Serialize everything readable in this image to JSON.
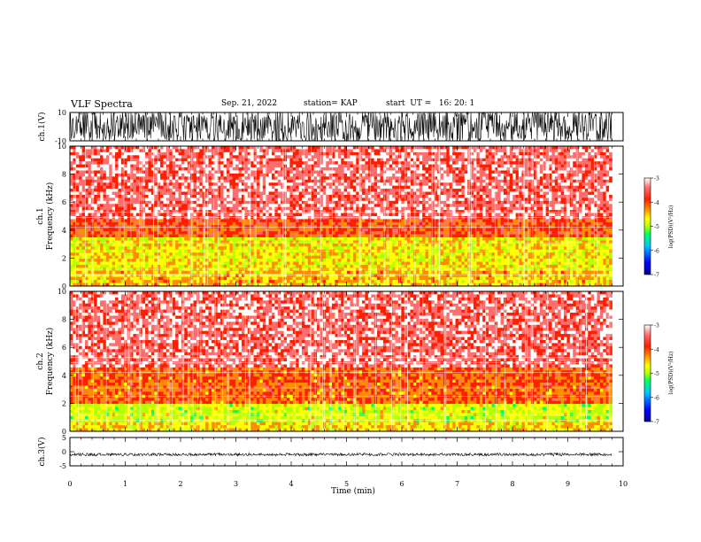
{
  "header": {
    "title": "VLF Spectra",
    "date": "Sep. 21, 2022",
    "station": "station= KAP",
    "start": "start  UT =   16: 20: 1"
  },
  "chart_data": [
    {
      "type": "line",
      "panel": "ch1-waveform",
      "ylabel": "ch.1(V)",
      "ylim": [
        -10,
        10
      ],
      "yticks": [
        "10",
        "-10"
      ],
      "xlim": [
        0,
        10
      ],
      "note_values": "waveform saturates near ±10 V for most of the record"
    },
    {
      "type": "heatmap",
      "panel": "ch1-spectrogram",
      "ylabel": "ch.1\nFrequency (kHz)",
      "ylim": [
        0,
        10
      ],
      "yticks": [
        "0",
        "2",
        "4",
        "6",
        "8",
        "10"
      ],
      "xlim": [
        0,
        9.8
      ],
      "colorbar": {
        "label": "log(PSD)(V²/Hz)",
        "range": [
          -7,
          -3
        ],
        "ticks": [
          "-3",
          "-4",
          "-5",
          "-6",
          "-7"
        ]
      },
      "bands": [
        {
          "freq": [
            0,
            1.0
          ],
          "level": -4.6
        },
        {
          "freq": [
            1.0,
            3.5
          ],
          "level": -4.8
        },
        {
          "freq": [
            3.5,
            4.8
          ],
          "level": -4.1
        },
        {
          "freq": [
            4.8,
            10
          ],
          "level": -3.6
        }
      ]
    },
    {
      "type": "heatmap",
      "panel": "ch2-spectrogram",
      "ylabel": "ch.2\nFrequency (kHz)",
      "ylim": [
        0,
        10
      ],
      "yticks": [
        "0",
        "2",
        "4",
        "6",
        "8",
        "10"
      ],
      "xlim": [
        0,
        9.8
      ],
      "colorbar": {
        "label": "log(PSD)(V²/Hz)",
        "range": [
          -7,
          -3
        ],
        "ticks": [
          "-3",
          "-4",
          "-5",
          "-6",
          "-7"
        ]
      },
      "bands": [
        {
          "freq": [
            0,
            0.6
          ],
          "level": -4.7
        },
        {
          "freq": [
            0.6,
            2.0
          ],
          "level": -5.0
        },
        {
          "freq": [
            2.0,
            4.5
          ],
          "level": -4.2
        },
        {
          "freq": [
            4.5,
            10
          ],
          "level": -3.6
        }
      ]
    },
    {
      "type": "line",
      "panel": "ch3-waveform",
      "ylabel": "ch.3(V)",
      "ylim": [
        -5,
        5
      ],
      "yticks": [
        "5",
        "0",
        "-5"
      ],
      "xlim": [
        0,
        10
      ],
      "note_values": "waveform centred near -1 V with small amplitude"
    }
  ],
  "x_axis": {
    "label": "Time (min)",
    "ticks": [
      "0",
      "1",
      "2",
      "3",
      "4",
      "5",
      "6",
      "7",
      "8",
      "9",
      "10"
    ]
  },
  "colors": {
    "cmap": [
      "#00008f",
      "#0000ff",
      "#00c8ff",
      "#00ff64",
      "#b4ff00",
      "#ffff00",
      "#ff8c00",
      "#ff1e00",
      "#ff6e6e",
      "#ffffff"
    ]
  }
}
